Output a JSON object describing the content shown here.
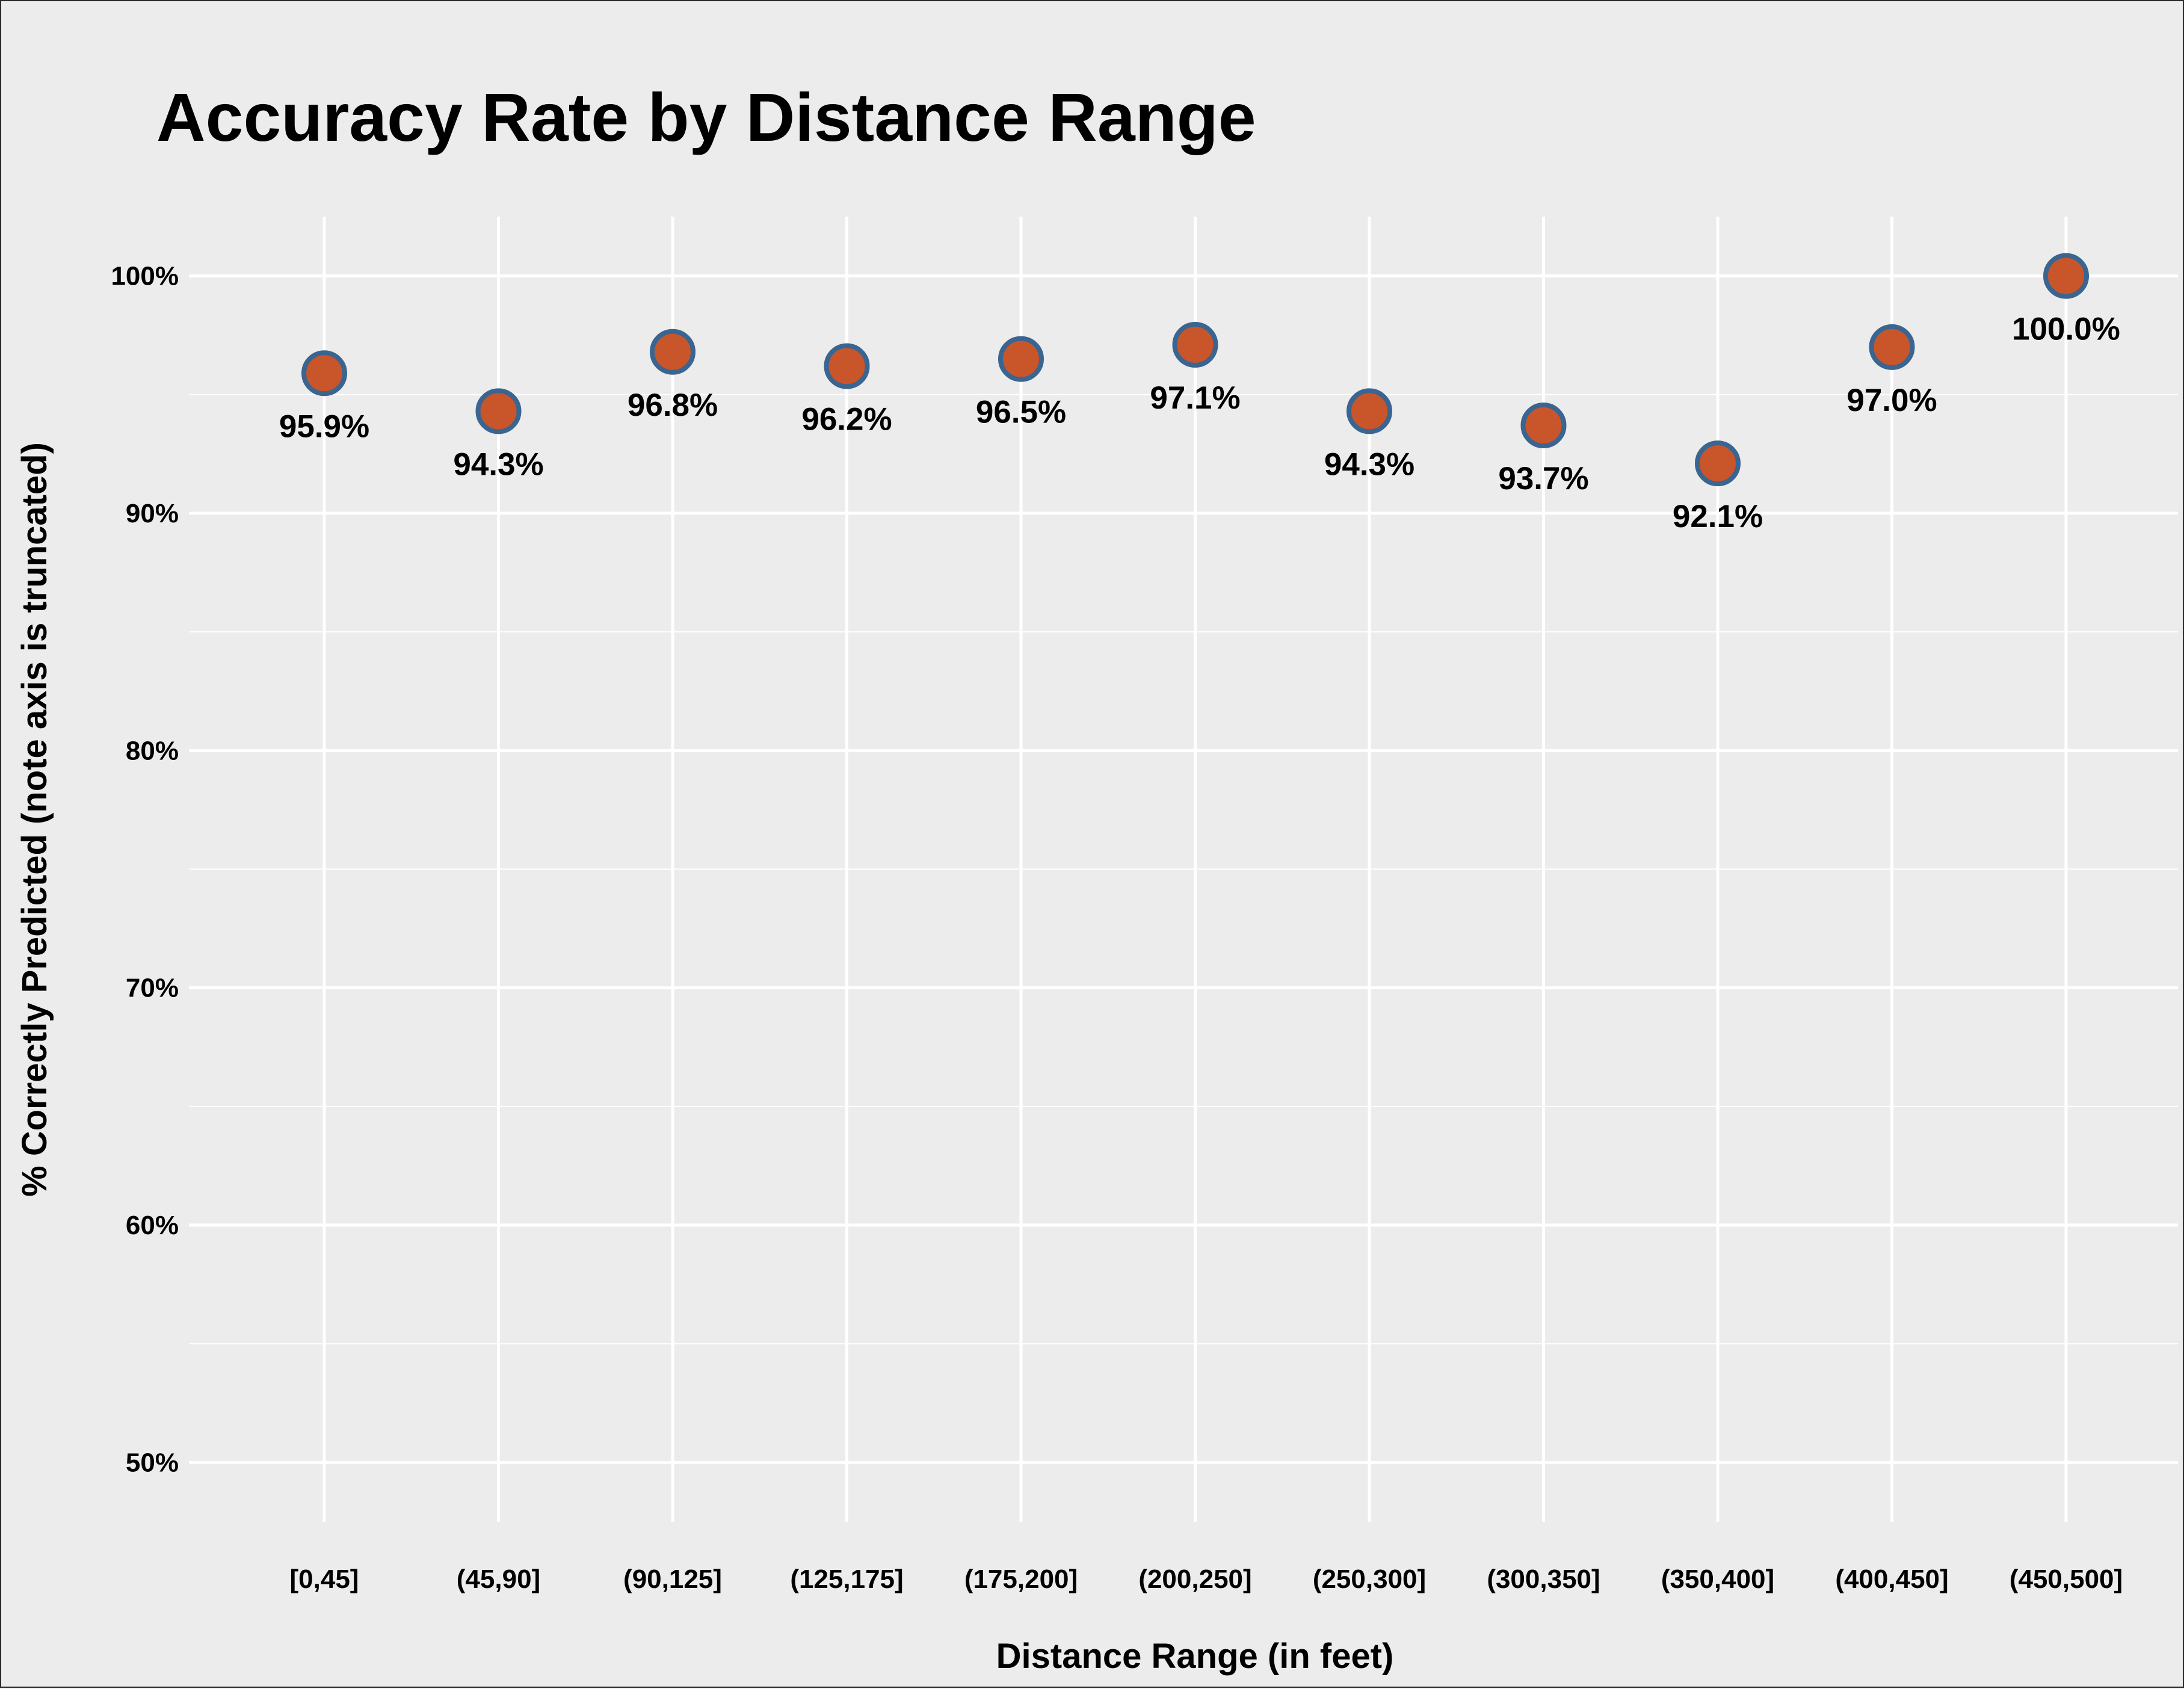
{
  "chart_data": {
    "type": "scatter",
    "title": "Accuracy Rate by Distance Range",
    "xlabel": "Distance Range (in feet)",
    "ylabel": "% Correctly Predicted (note axis is truncated)",
    "categories": [
      "[0,45]",
      "(45,90]",
      "(90,125]",
      "(125,175]",
      "(175,200]",
      "(200,250]",
      "(250,300]",
      "(300,350]",
      "(350,400]",
      "(400,450]",
      "(450,500]"
    ],
    "values": [
      95.9,
      94.3,
      96.8,
      96.2,
      96.5,
      97.1,
      94.3,
      93.7,
      92.1,
      97.0,
      100.0
    ],
    "data_labels": [
      "95.9%",
      "94.3%",
      "96.8%",
      "96.2%",
      "96.5%",
      "97.1%",
      "94.3%",
      "93.7%",
      "92.1%",
      "97.0%",
      "100.0%"
    ],
    "y_ticks": [
      50,
      60,
      70,
      80,
      90,
      100
    ],
    "y_tick_labels": [
      "50%",
      "60%",
      "70%",
      "80%",
      "90%",
      "100%"
    ],
    "ylim": [
      47.5,
      102.5
    ],
    "grid": true,
    "legend": "none",
    "colors": {
      "background": "#ececec",
      "grid": "#ffffff",
      "marker_fill": "#c9552b",
      "marker_stroke": "#3a6590"
    }
  }
}
